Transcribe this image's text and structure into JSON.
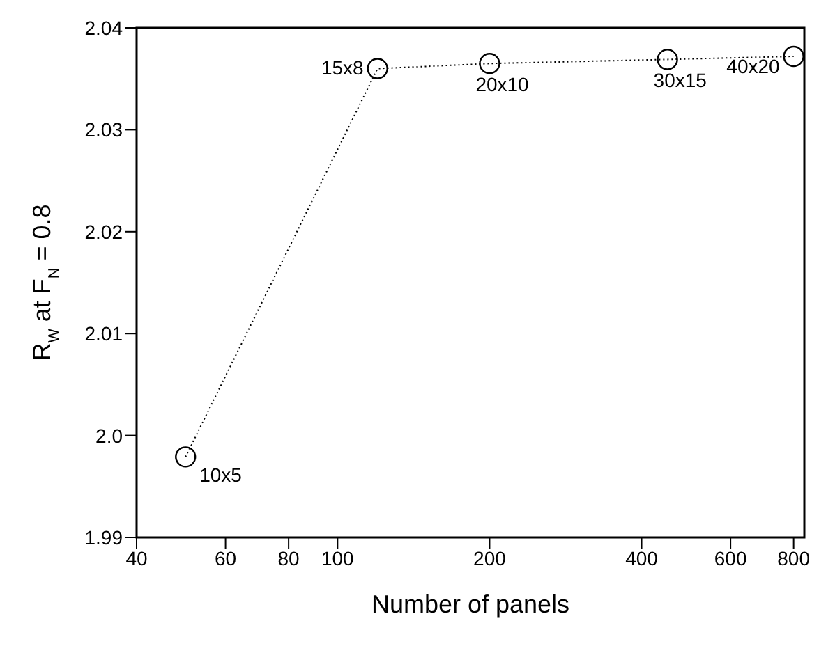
{
  "chart_data": {
    "type": "line",
    "xlabel": "Number of panels",
    "ylabel": "R$_{W}$ at F$_{N}$ = 0.8",
    "x": [
      50,
      120,
      200,
      450,
      800
    ],
    "series": [
      {
        "color": "#000000",
        "values": [
          1.9979,
          2.036,
          2.0365,
          2.0369,
          2.0372
        ]
      }
    ],
    "log": "x",
    "xlim": [
      40,
      840
    ],
    "xticks": [
      40,
      60,
      80,
      100,
      200,
      400,
      600,
      800
    ],
    "ylim": [
      1.99,
      2.04
    ],
    "yticks": [
      1.99,
      {
        "value": 2.0,
        "label": "2.0"
      },
      2.01,
      2.02,
      2.03,
      2.04
    ],
    "marker": "circle",
    "line_style": "dotted",
    "grid": false,
    "legend": false,
    "annotations": [
      {
        "text": "10x5",
        "x": 50,
        "y": 1.9979
      },
      {
        "text": "15x8",
        "x": 120,
        "y": 2.036
      },
      {
        "text": "20x10",
        "x": 200,
        "y": 2.0365
      },
      {
        "text": "30x15",
        "x": 450,
        "y": 2.0369
      },
      {
        "text": "40x20",
        "x": 800,
        "y": 2.0372
      }
    ]
  }
}
